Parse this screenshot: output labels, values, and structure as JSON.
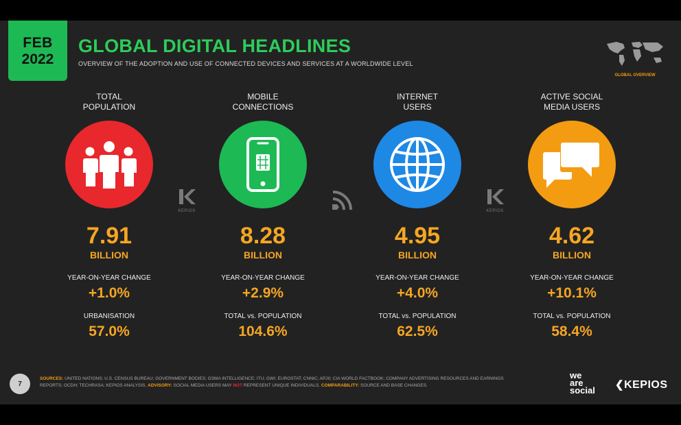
{
  "badge": {
    "month": "FEB",
    "year": "2022"
  },
  "header": {
    "title": "GLOBAL DIGITAL HEADLINES",
    "subtitle": "OVERVIEW OF THE ADOPTION AND USE OF CONNECTED DEVICES AND SERVICES AT A WORLDWIDE LEVEL",
    "section_label": "GLOBAL OVERVIEW"
  },
  "colors": {
    "accent_green": "#1db954",
    "orange": "#f5a623",
    "red": "#e8282c",
    "blue": "#1e88e5",
    "amber": "#f39c12"
  },
  "stats": [
    {
      "heading_1": "TOTAL",
      "heading_2": "POPULATION",
      "icon": "people-icon",
      "color": "#e8282c",
      "value": "7.91",
      "unit": "BILLION",
      "label_1": "YEAR-ON-YEAR CHANGE",
      "value_1": "+1.0%",
      "label_2": "URBANISATION",
      "value_2": "57.0%"
    },
    {
      "heading_1": "MOBILE",
      "heading_2": "CONNECTIONS",
      "icon": "mobile-phone-icon",
      "color": "#1db954",
      "value": "8.28",
      "unit": "BILLION",
      "label_1": "YEAR-ON-YEAR CHANGE",
      "value_1": "+2.9%",
      "label_2": "TOTAL vs. POPULATION",
      "value_2": "104.6%"
    },
    {
      "heading_1": "INTERNET",
      "heading_2": "USERS",
      "icon": "globe-icon",
      "color": "#1e88e5",
      "value": "4.95",
      "unit": "BILLION",
      "label_1": "YEAR-ON-YEAR CHANGE",
      "value_1": "+4.0%",
      "label_2": "TOTAL vs. POPULATION",
      "value_2": "62.5%"
    },
    {
      "heading_1": "ACTIVE SOCIAL",
      "heading_2": "MEDIA USERS",
      "icon": "chat-bubbles-icon",
      "color": "#f39c12",
      "value": "4.62",
      "unit": "BILLION",
      "label_1": "YEAR-ON-YEAR CHANGE",
      "value_1": "+10.1%",
      "label_2": "TOTAL vs. POPULATION",
      "value_2": "58.4%"
    }
  ],
  "separators": {
    "kepios_text": "KEPIOS"
  },
  "footer": {
    "page_number": "7",
    "sources_label": "SOURCES:",
    "sources_text": "UNITED NATIONS; U.S. CENSUS BUREAU; GOVERNMENT BODIES; GSMA INTELLIGENCE; ITU; GWI; EUROSTAT; CNNIC; APJII; CIA WORLD FACTBOOK; COMPANY ADVERTISING RESOURCES AND EARNINGS REPORTS; OCDH; TECHRASA; KEPIOS ANALYSIS.",
    "advisory_label": "ADVISORY:",
    "advisory_text_1": "SOCIAL MEDIA USERS MAY",
    "advisory_not": "NOT",
    "advisory_text_2": "REPRESENT UNIQUE INDIVIDUALS.",
    "comparability_label": "COMPARABILITY:",
    "comparability_text": "SOURCE AND BASE CHANGES.",
    "brand_1_line_1": "we",
    "brand_1_line_2": "are",
    "brand_1_line_3": "social",
    "brand_2": "KEPIOS"
  }
}
